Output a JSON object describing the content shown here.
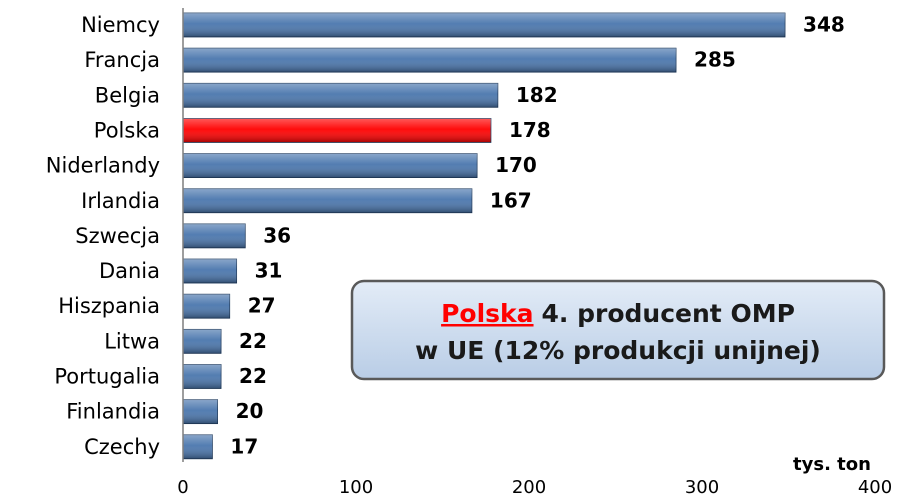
{
  "chart_data": {
    "type": "barh",
    "categories": [
      "Niemcy",
      "Francja",
      "Belgia",
      "Polska",
      "Niderlandy",
      "Irlandia",
      "Szwecja",
      "Dania",
      "Hiszpania",
      "Litwa",
      "Portugalia",
      "Finlandia",
      "Czechy"
    ],
    "values": [
      348,
      285,
      182,
      178,
      170,
      167,
      36,
      31,
      27,
      22,
      22,
      20,
      17
    ],
    "colors": [
      "#4a76ad",
      "#4a76ad",
      "#4a76ad",
      "#ff0000",
      "#4a76ad",
      "#4a76ad",
      "#4a76ad",
      "#4a76ad",
      "#4a76ad",
      "#4a76ad",
      "#4a76ad",
      "#4a76ad",
      "#4a76ad"
    ],
    "label_colors": [
      "#000000",
      "#000000",
      "#000000",
      "#ff0000",
      "#000000",
      "#000000",
      "#000000",
      "#000000",
      "#000000",
      "#000000",
      "#000000",
      "#000000",
      "#000000"
    ],
    "xlim": [
      0,
      400
    ],
    "xticks": [
      0,
      100,
      200,
      300,
      400
    ],
    "grid": false,
    "x_unit": "tys. ton",
    "annotation": {
      "highlight": "Polska",
      "line1": "4. producent OMP",
      "line2": "w UE (12% produkcji unijnej)"
    }
  }
}
